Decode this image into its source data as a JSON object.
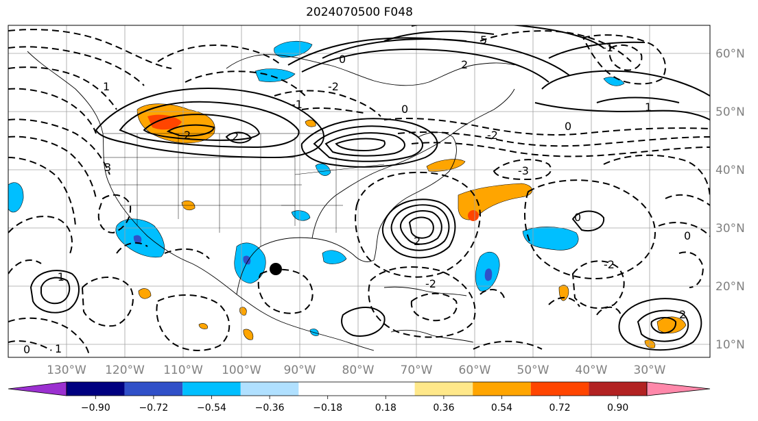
{
  "title": "2024070500 F048",
  "longitude_labels": [
    "130°W",
    "120°W",
    "110°W",
    "100°W",
    "90°W",
    "80°W",
    "70°W",
    "60°W",
    "50°W",
    "40°W",
    "30°W"
  ],
  "latitude_labels": [
    "60°N",
    "50°N",
    "40°N",
    "30°N",
    "20°N",
    "10°N"
  ],
  "colorbar": {
    "ticks": [
      "−0.90",
      "−0.72",
      "−0.54",
      "−0.36",
      "−0.18",
      "0.18",
      "0.36",
      "0.54",
      "0.72",
      "0.90"
    ],
    "colors": [
      "#9b30d0",
      "#000080",
      "#3050c8",
      "#00bfff",
      "#b0e0ff",
      "#ffffff",
      "#ffe88a",
      "#ffa500",
      "#ff4500",
      "#b22222",
      "#ff88aa"
    ]
  },
  "contour_labels": [
    "5",
    "2",
    "0",
    "-2",
    "-1",
    "1",
    "-3",
    "3",
    "2",
    "0",
    "-2",
    "0",
    "-2",
    "1",
    "-1",
    "0",
    "2",
    "-2",
    "0",
    "-1",
    "1",
    "2",
    "0",
    "2"
  ],
  "marker": {
    "name": "black-dot",
    "color": "#000000"
  }
}
